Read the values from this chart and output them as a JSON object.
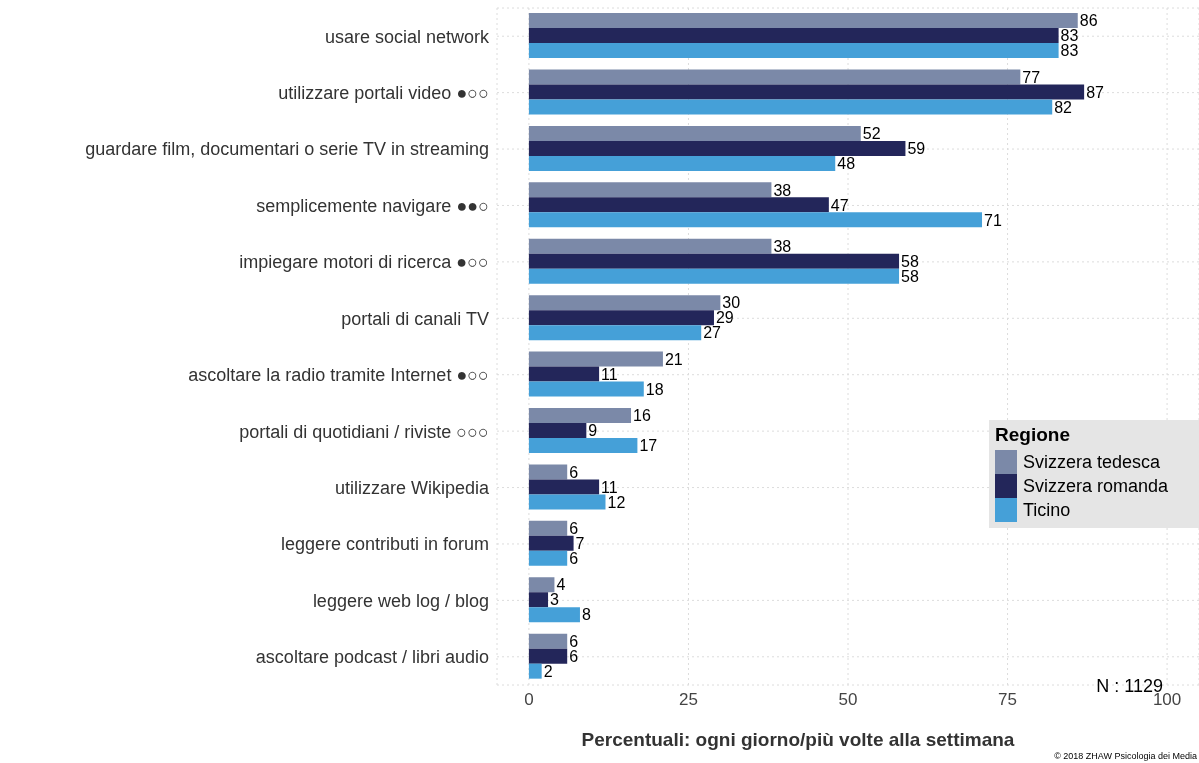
{
  "chart_data": {
    "type": "bar",
    "orientation": "horizontal",
    "xlabel": "Percentuali: ogni giorno/più volte alla settimana",
    "legend_title": "Regione",
    "legend": "right",
    "grid": true,
    "data_labels": true,
    "categories": [
      "usare social network",
      "utilizzare portali video ●○○",
      "guardare film, documentari o serie TV in streaming",
      "semplicemente navigare ●●○",
      "impiegare motori di ricerca ●○○",
      "portali di canali TV",
      "ascoltare la radio tramite Internet ●○○",
      "portali di quotidiani / riviste ○○○",
      "utilizzare Wikipedia",
      "leggere contributi in forum",
      "leggere web log / blog",
      "ascoltare podcast / libri audio"
    ],
    "xlim": [
      -5,
      105
    ],
    "xticks": [
      0,
      25,
      50,
      75,
      100
    ],
    "series": [
      {
        "name": "Svizzera tedesca",
        "color": "#7b89a8",
        "values": [
          86,
          77,
          52,
          38,
          38,
          30,
          21,
          16,
          6,
          6,
          4,
          6
        ]
      },
      {
        "name": "Svizzera romanda",
        "color": "#23265a",
        "values": [
          83,
          87,
          59,
          47,
          58,
          29,
          11,
          9,
          11,
          7,
          3,
          6
        ]
      },
      {
        "name": "Ticino",
        "color": "#45a0d8",
        "values": [
          83,
          82,
          48,
          71,
          58,
          27,
          18,
          17,
          12,
          6,
          8,
          2
        ]
      }
    ],
    "annotations": [
      "N : 1129",
      "© 2018 ZHAW Psicologia dei Media"
    ]
  }
}
